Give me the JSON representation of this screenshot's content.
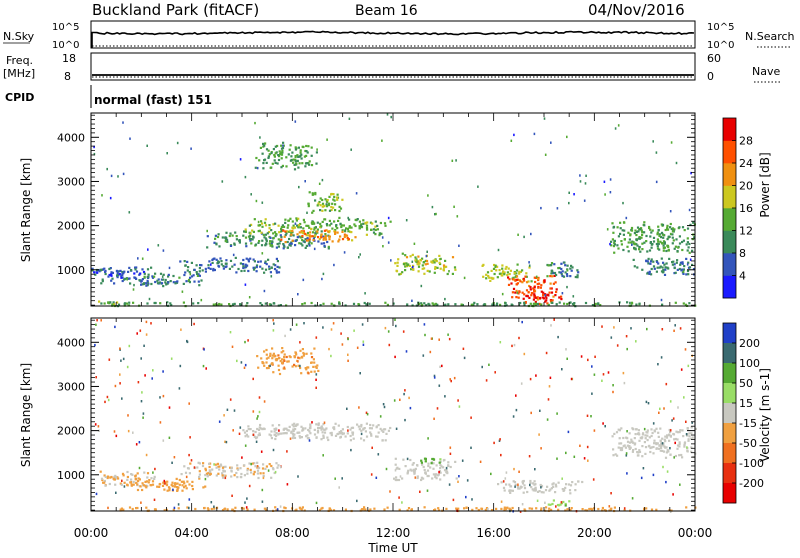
{
  "header": {
    "title": "Buckland Park (fitACF)",
    "beam": "Beam 16",
    "date": "04/Nov/2016"
  },
  "panels": {
    "nsky": {
      "label": "N.Sky",
      "left_ticks": [
        "10^5",
        "10^0"
      ],
      "right_label": "N.Search",
      "right_ticks": [
        "10^5",
        "10^0"
      ]
    },
    "freq": {
      "label_line1": "Freq.",
      "label_line2": "[MHz]",
      "left_ticks": [
        "18",
        "8"
      ],
      "right_label": "Nave",
      "right_ticks": [
        "60",
        "0"
      ]
    },
    "cpid": {
      "label": "CPID",
      "text": "normal (fast) 151"
    }
  },
  "chart_data": [
    {
      "type": "heatmap",
      "name": "power",
      "ylabel": "Slant Range [km]",
      "yticks": [
        1000,
        2000,
        3000,
        4000
      ],
      "ylim": [
        180,
        4550
      ],
      "colorbar_label": "Power [dB]",
      "colorbar_ticks": [
        4,
        8,
        12,
        16,
        20,
        24,
        28
      ],
      "colorbar_range": [
        0,
        32
      ],
      "colors": [
        "#1a1aff",
        "#3355bb",
        "#3a8a5a",
        "#55aa33",
        "#ccc820",
        "#f09010",
        "#ff5000",
        "#e80000"
      ],
      "regions": [
        {
          "t": [
            0.0,
            0.6
          ],
          "r": [
            900,
            1050
          ],
          "v": 6
        },
        {
          "t": [
            0.1,
            2.0
          ],
          "r": [
            200,
            320
          ],
          "v": 14
        },
        {
          "t": [
            0.3,
            2.5
          ],
          "r": [
            700,
            1100
          ],
          "v": 7
        },
        {
          "t": [
            1.5,
            4.5
          ],
          "r": [
            650,
            950
          ],
          "v": 9
        },
        {
          "t": [
            3.5,
            7.5
          ],
          "r": [
            950,
            1300
          ],
          "v": 8
        },
        {
          "t": [
            4.5,
            9.5
          ],
          "r": [
            1500,
            1900
          ],
          "v": 10
        },
        {
          "t": [
            6.0,
            12.0
          ],
          "r": [
            1800,
            2200
          ],
          "v": 14
        },
        {
          "t": [
            7.5,
            10.5
          ],
          "r": [
            1650,
            1950
          ],
          "v": 22
        },
        {
          "t": [
            6.5,
            9.0
          ],
          "r": [
            3300,
            3900
          ],
          "v": 12
        },
        {
          "t": [
            8.5,
            10.0
          ],
          "r": [
            2300,
            2800
          ],
          "v": 15
        },
        {
          "t": [
            12.0,
            14.5
          ],
          "r": [
            900,
            1400
          ],
          "v": 17
        },
        {
          "t": [
            15.5,
            17.5
          ],
          "r": [
            750,
            1150
          ],
          "v": 16
        },
        {
          "t": [
            16.5,
            18.5
          ],
          "r": [
            350,
            900
          ],
          "v": 26
        },
        {
          "t": [
            17.0,
            18.8
          ],
          "r": [
            250,
            550
          ],
          "v": 29
        },
        {
          "t": [
            18.0,
            19.5
          ],
          "r": [
            800,
            1200
          ],
          "v": 9
        },
        {
          "t": [
            20.5,
            24.0
          ],
          "r": [
            1400,
            2100
          ],
          "v": 12
        },
        {
          "t": [
            21.5,
            24.0
          ],
          "r": [
            900,
            1300
          ],
          "v": 8
        },
        {
          "t": [
            0.0,
            24.0
          ],
          "r": [
            200,
            290
          ],
          "v": 12
        }
      ]
    },
    {
      "type": "heatmap",
      "name": "velocity",
      "ylabel": "Slant Range [km]",
      "yticks": [
        1000,
        2000,
        3000,
        4000
      ],
      "ylim": [
        180,
        4550
      ],
      "colorbar_label": "Velocity [m s-1]",
      "colorbar_ticks": [
        200,
        100,
        50,
        15,
        -15,
        -50,
        -100,
        -200
      ],
      "colors": [
        "#2040c8",
        "#3a6a70",
        "#55aa33",
        "#99dd66",
        "#c8c8c0",
        "#f0a040",
        "#f07020",
        "#e83010",
        "#e80000"
      ],
      "regions": [
        {
          "t": [
            0.3,
            2.5
          ],
          "r": [
            700,
            1100
          ],
          "v": -20
        },
        {
          "t": [
            1.5,
            4.5
          ],
          "r": [
            650,
            950
          ],
          "v": -30
        },
        {
          "t": [
            3.5,
            7.5
          ],
          "r": [
            950,
            1300
          ],
          "v": -10
        },
        {
          "t": [
            6.0,
            12.0
          ],
          "r": [
            1800,
            2200
          ],
          "v": 0
        },
        {
          "t": [
            6.5,
            9.0
          ],
          "r": [
            3300,
            3900
          ],
          "v": -40
        },
        {
          "t": [
            12.0,
            14.5
          ],
          "r": [
            900,
            1400
          ],
          "v": 0
        },
        {
          "t": [
            13.0,
            14.0
          ],
          "r": [
            1250,
            1400
          ],
          "v": 60
        },
        {
          "t": [
            16.0,
            19.5
          ],
          "r": [
            600,
            900
          ],
          "v": 0
        },
        {
          "t": [
            18.0,
            19.0
          ],
          "r": [
            300,
            450
          ],
          "v": 40
        },
        {
          "t": [
            20.5,
            24.0
          ],
          "r": [
            1400,
            2100
          ],
          "v": 0
        },
        {
          "t": [
            0.0,
            24.0
          ],
          "r": [
            200,
            290
          ],
          "v": -30
        }
      ]
    }
  ],
  "time_axis": {
    "xlabel": "Time UT",
    "ticks": [
      "00:00",
      "04:00",
      "08:00",
      "12:00",
      "16:00",
      "20:00",
      "00:00"
    ],
    "xlim": [
      0,
      24
    ]
  }
}
